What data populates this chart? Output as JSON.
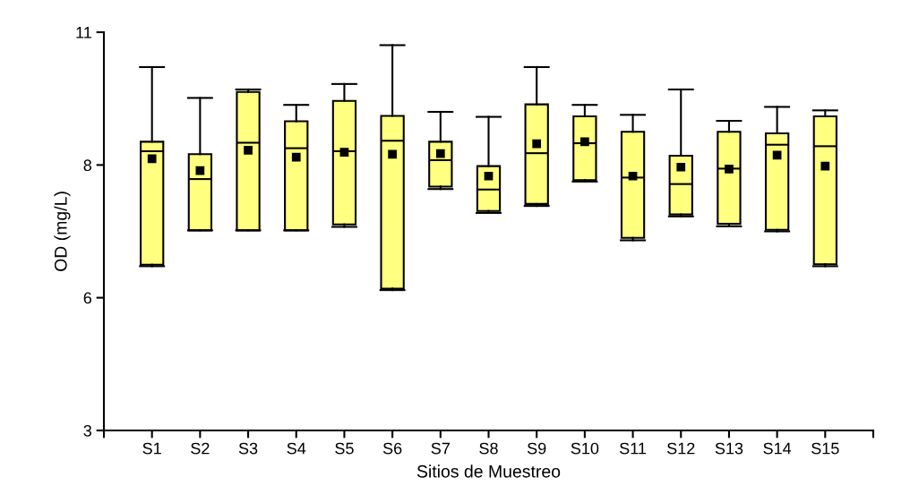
{
  "chart_data": {
    "type": "box",
    "xlabel": "Sitios de Muestreo",
    "ylabel": "OD (mg/L)",
    "categories": [
      "S1",
      "S2",
      "S3",
      "S4",
      "S5",
      "S6",
      "S7",
      "S8",
      "S9",
      "S10",
      "S11",
      "S12",
      "S13",
      "S14",
      "S15"
    ],
    "color": "#ffff80",
    "ylim": [
      3,
      11
    ],
    "yticks": [
      3,
      {
        "value": 5.667,
        "label": "6"
      },
      {
        "value": 8.333,
        "label": "8"
      },
      11
    ],
    "grid": false,
    "marker": "square",
    "boxes": [
      {
        "low": 6.3,
        "q1": 6.33,
        "median": 8.61,
        "q3": 8.8,
        "high": 10.3,
        "mean": 8.46
      },
      {
        "low": 7.02,
        "q1": 7.02,
        "median": 8.05,
        "q3": 8.55,
        "high": 9.68,
        "mean": 8.22
      },
      {
        "low": 7.02,
        "q1": 7.02,
        "median": 8.78,
        "q3": 9.8,
        "high": 9.85,
        "mean": 8.63
      },
      {
        "low": 7.02,
        "q1": 7.02,
        "median": 8.67,
        "q3": 9.21,
        "high": 9.54,
        "mean": 8.49
      },
      {
        "low": 7.09,
        "q1": 7.14,
        "median": 8.61,
        "q3": 9.62,
        "high": 9.96,
        "mean": 8.59
      },
      {
        "low": 5.82,
        "q1": 5.85,
        "median": 8.82,
        "q3": 9.32,
        "high": 10.74,
        "mean": 8.55
      },
      {
        "low": 7.85,
        "q1": 7.9,
        "median": 8.43,
        "q3": 8.8,
        "high": 9.4,
        "mean": 8.56
      },
      {
        "low": 7.37,
        "q1": 7.41,
        "median": 7.84,
        "q3": 8.31,
        "high": 9.3,
        "mean": 8.11
      },
      {
        "low": 7.51,
        "q1": 7.55,
        "median": 8.57,
        "q3": 9.55,
        "high": 10.3,
        "mean": 8.76
      },
      {
        "low": 8.0,
        "q1": 8.03,
        "median": 8.77,
        "q3": 9.31,
        "high": 9.54,
        "mean": 8.8
      },
      {
        "low": 6.82,
        "q1": 6.87,
        "median": 8.08,
        "q3": 9.0,
        "high": 9.34,
        "mean": 8.11
      },
      {
        "low": 7.3,
        "q1": 7.34,
        "median": 7.95,
        "q3": 8.52,
        "high": 9.85,
        "mean": 8.29
      },
      {
        "low": 7.1,
        "q1": 7.15,
        "median": 8.26,
        "q3": 9.0,
        "high": 9.22,
        "mean": 8.25
      },
      {
        "low": 7.0,
        "q1": 7.03,
        "median": 8.74,
        "q3": 8.97,
        "high": 9.5,
        "mean": 8.53
      },
      {
        "low": 6.3,
        "q1": 6.34,
        "median": 8.71,
        "q3": 9.31,
        "high": 9.43,
        "mean": 8.31
      }
    ]
  }
}
